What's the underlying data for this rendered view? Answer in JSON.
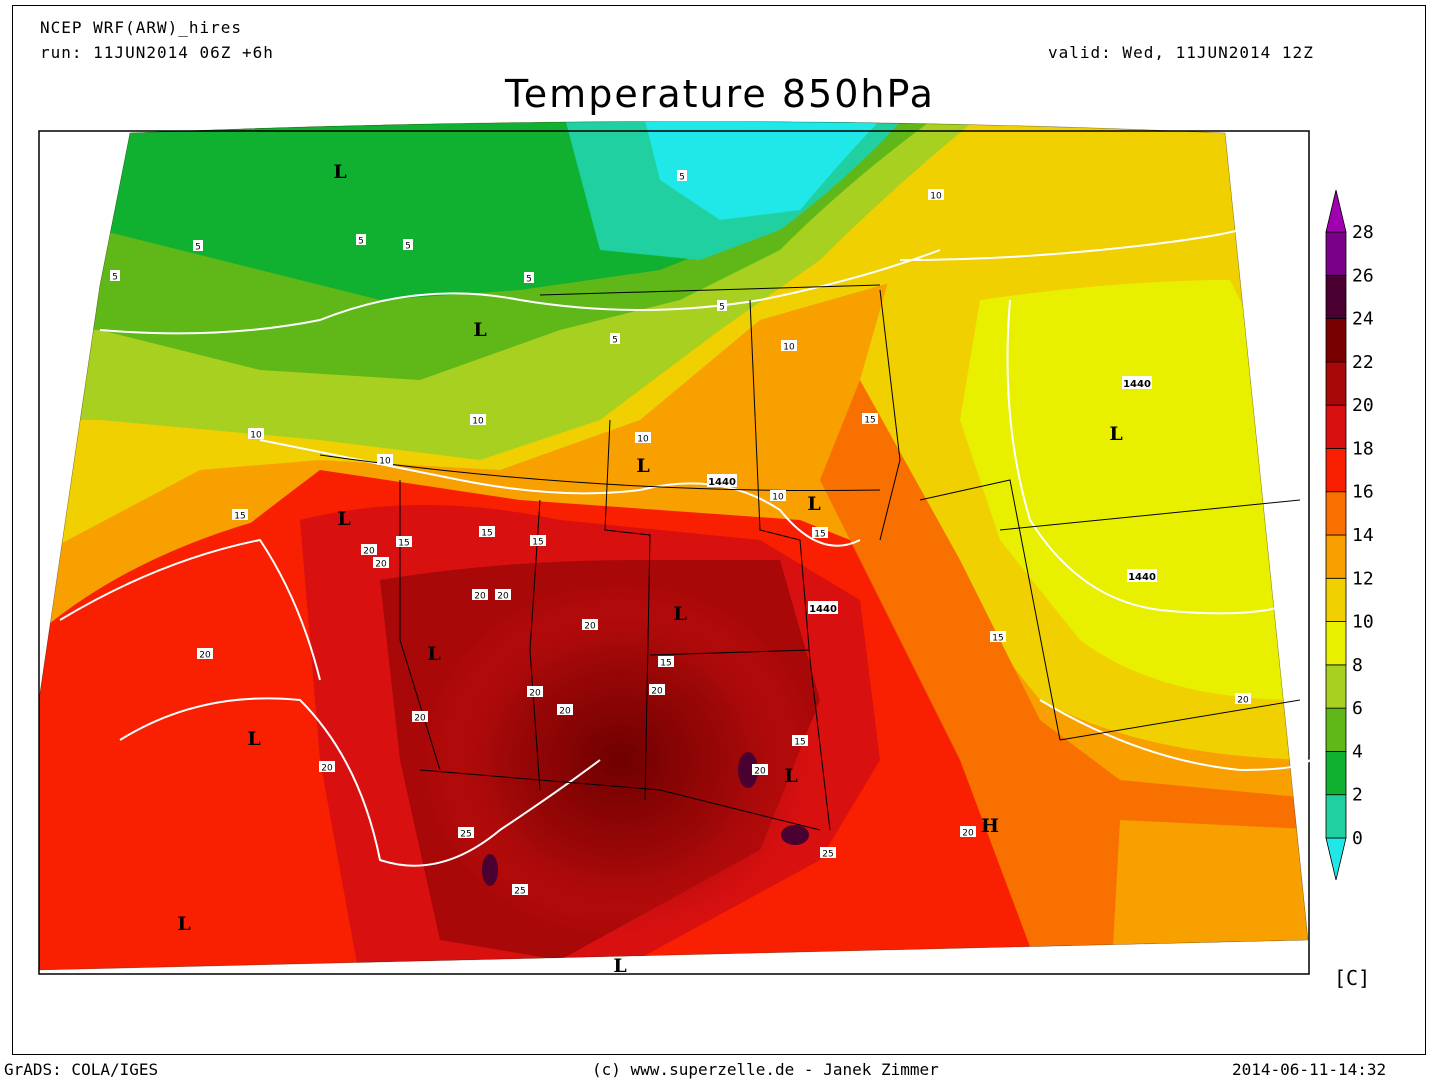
{
  "header": {
    "model": "NCEP WRF(ARW)_hires",
    "run": "run: 11JUN2014 06Z +6h",
    "valid": "valid: Wed, 11JUN2014 12Z",
    "title": "Temperature 850hPa"
  },
  "footer": {
    "left": "GrADS: COLA/IGES",
    "center": "(c) www.superzelle.de - Janek Zimmer",
    "right": "2014-06-11-14:32"
  },
  "colorbar": {
    "unit": "[C]",
    "ticks": [
      "0",
      "2",
      "4",
      "6",
      "8",
      "10",
      "12",
      "14",
      "16",
      "18",
      "20",
      "22",
      "24",
      "26",
      "28"
    ],
    "colors": [
      "#20e8e8",
      "#20d0a0",
      "#10b030",
      "#60b818",
      "#a8d020",
      "#e8f000",
      "#f0d000",
      "#f8a000",
      "#f87000",
      "#f82000",
      "#d81010",
      "#a80808",
      "#780000",
      "#4a0030",
      "#7a0088",
      "#a000b0"
    ]
  },
  "map": {
    "pressure_centers": [
      {
        "label": "L"
      },
      {
        "label": "L"
      },
      {
        "label": "L"
      },
      {
        "label": "L"
      },
      {
        "label": "L"
      },
      {
        "label": "L"
      },
      {
        "label": "L"
      },
      {
        "label": "L"
      },
      {
        "label": "L"
      },
      {
        "label": "L"
      },
      {
        "label": "L"
      },
      {
        "label": "L"
      },
      {
        "label": "H"
      }
    ],
    "temp_contour_labels": [
      "5",
      "5",
      "5",
      "5",
      "5",
      "5",
      "5",
      "5",
      "10",
      "10",
      "10",
      "10",
      "10",
      "10",
      "10",
      "15",
      "15",
      "15",
      "15",
      "15",
      "15",
      "15",
      "15",
      "15",
      "20",
      "20",
      "20",
      "20",
      "20",
      "20",
      "20",
      "20",
      "20",
      "20",
      "20",
      "20",
      "20",
      "20",
      "25",
      "25",
      "25"
    ],
    "height_contour_labels": [
      "1440",
      "1440",
      "1440",
      "1440"
    ]
  }
}
